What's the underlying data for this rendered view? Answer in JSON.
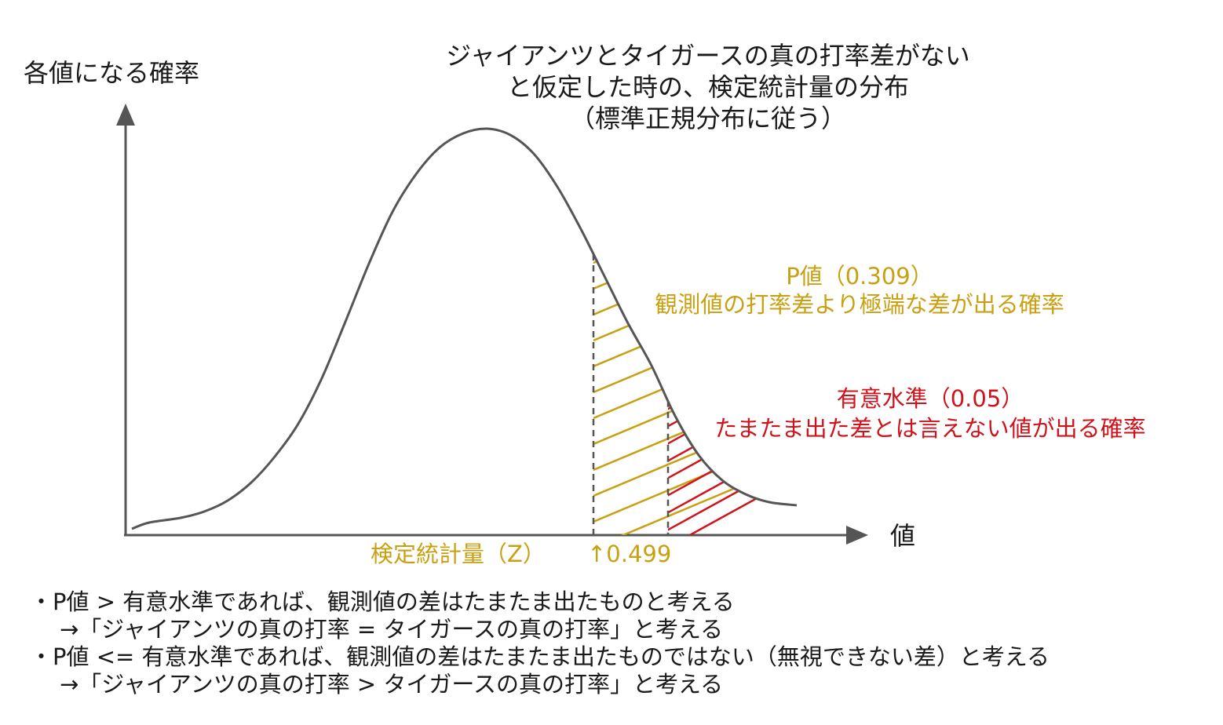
{
  "title": {
    "line1": "ジャイアンツとタイガースの真の打率差がない",
    "line2": "と仮定した時の、検定統計量の分布",
    "line3": "（標準正規分布に従う）"
  },
  "axes": {
    "y_label": "各値になる確率",
    "x_label": "値"
  },
  "test_statistic": {
    "label": "検定統計量（Z）",
    "value_label": "↑0.499",
    "value": 0.499
  },
  "p_value": {
    "label": "P値（0.309）",
    "description": "観測値の打率差より極端な差が出る確率",
    "value": 0.309,
    "color": "#c9a012"
  },
  "significance": {
    "label": "有意水準（0.05）",
    "description": "たまたま出た差とは言えない値が出る確率",
    "value": 0.05,
    "color": "#d0121b"
  },
  "notes": [
    "・P値 > 有意水準であれば、観測値の差はたまたま出たものと考える",
    "→「ジャイアンツの真の打率 = タイガースの真の打率」と考える",
    "・P値 <= 有意水準であれば、観測値の差はたまたま出たものではない（無視できない差）と考える",
    "→「ジャイアンツの真の打率 > タイガースの真の打率」と考える"
  ],
  "colors": {
    "curve": "#555555",
    "axis": "#555555",
    "text": "#1a1a1a"
  }
}
